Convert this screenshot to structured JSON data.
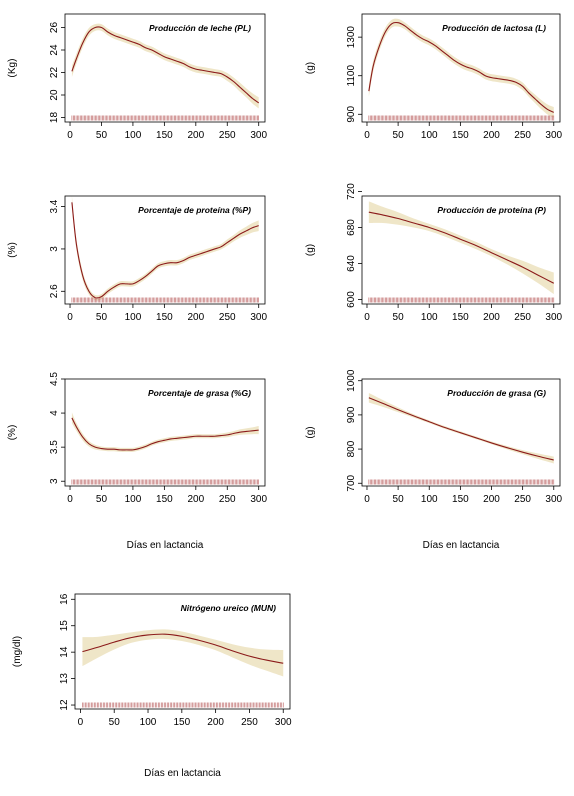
{
  "chart_data": [
    {
      "id": "pl",
      "type": "line",
      "title": "Producción de leche (PL)",
      "ylabel": "(Kg)",
      "xlabel": "",
      "xlim": [
        -8,
        310
      ],
      "ylim": [
        17.6,
        27.2
      ],
      "xticks": [
        0,
        50,
        100,
        150,
        200,
        250,
        300
      ],
      "yticks": [
        18,
        20,
        22,
        24,
        26
      ],
      "series": [
        {
          "x": [
            3,
            10,
            20,
            30,
            40,
            50,
            60,
            70,
            80,
            90,
            100,
            110,
            120,
            130,
            140,
            150,
            160,
            170,
            180,
            190,
            200,
            210,
            220,
            230,
            240,
            250,
            260,
            270,
            280,
            290,
            300
          ],
          "y": [
            22.1,
            23.2,
            24.6,
            25.6,
            26.0,
            26.0,
            25.6,
            25.3,
            25.1,
            24.9,
            24.7,
            24.5,
            24.2,
            24.0,
            23.7,
            23.4,
            23.2,
            23.0,
            22.8,
            22.5,
            22.3,
            22.2,
            22.1,
            22.0,
            21.9,
            21.6,
            21.2,
            20.7,
            20.2,
            19.7,
            19.3
          ],
          "band": [
            0.5,
            0.45,
            0.4,
            0.35,
            0.3,
            0.3,
            0.3,
            0.3,
            0.3,
            0.3,
            0.3,
            0.3,
            0.3,
            0.3,
            0.3,
            0.3,
            0.3,
            0.3,
            0.3,
            0.3,
            0.3,
            0.3,
            0.3,
            0.3,
            0.3,
            0.35,
            0.35,
            0.4,
            0.4,
            0.45,
            0.5
          ]
        }
      ]
    },
    {
      "id": "l",
      "type": "line",
      "title": "Producción de lactosa (L)",
      "ylabel": "(g)",
      "xlabel": "",
      "xlim": [
        -8,
        310
      ],
      "ylim": [
        860,
        1420
      ],
      "xticks": [
        0,
        50,
        100,
        150,
        200,
        250,
        300
      ],
      "yticks": [
        900,
        1100,
        1300
      ],
      "series": [
        {
          "x": [
            3,
            10,
            20,
            30,
            40,
            50,
            60,
            70,
            80,
            90,
            100,
            110,
            120,
            130,
            140,
            150,
            160,
            170,
            180,
            190,
            200,
            210,
            220,
            230,
            240,
            250,
            260,
            270,
            280,
            290,
            300
          ],
          "y": [
            1020,
            1150,
            1255,
            1330,
            1370,
            1375,
            1360,
            1335,
            1310,
            1290,
            1275,
            1255,
            1230,
            1205,
            1180,
            1160,
            1145,
            1135,
            1120,
            1100,
            1090,
            1085,
            1080,
            1075,
            1065,
            1045,
            1010,
            980,
            950,
            925,
            910
          ],
          "band": [
            30,
            28,
            25,
            22,
            20,
            20,
            18,
            18,
            18,
            18,
            18,
            18,
            18,
            18,
            18,
            18,
            18,
            18,
            18,
            18,
            18,
            18,
            18,
            18,
            18,
            20,
            20,
            22,
            24,
            26,
            28
          ]
        }
      ]
    },
    {
      "id": "pp",
      "type": "line",
      "title": "Porcentaje de proteína (%P)",
      "ylabel": "(%)",
      "xlabel": "",
      "xlim": [
        -8,
        310
      ],
      "ylim": [
        2.48,
        3.5
      ],
      "xticks": [
        0,
        50,
        100,
        150,
        200,
        250,
        300
      ],
      "yticks": [
        2.6,
        3.0,
        3.4
      ],
      "series": [
        {
          "x": [
            3,
            10,
            20,
            30,
            40,
            50,
            60,
            70,
            80,
            90,
            100,
            110,
            120,
            130,
            140,
            150,
            160,
            170,
            180,
            190,
            200,
            210,
            220,
            230,
            240,
            250,
            260,
            270,
            280,
            290,
            300
          ],
          "y": [
            3.44,
            3.05,
            2.75,
            2.6,
            2.54,
            2.55,
            2.6,
            2.64,
            2.67,
            2.67,
            2.67,
            2.7,
            2.74,
            2.79,
            2.84,
            2.86,
            2.87,
            2.87,
            2.89,
            2.92,
            2.94,
            2.96,
            2.98,
            3.0,
            3.02,
            3.06,
            3.1,
            3.14,
            3.17,
            3.2,
            3.22
          ],
          "band": [
            0.06,
            0.05,
            0.04,
            0.03,
            0.025,
            0.025,
            0.025,
            0.025,
            0.025,
            0.025,
            0.025,
            0.025,
            0.025,
            0.025,
            0.025,
            0.025,
            0.025,
            0.025,
            0.025,
            0.025,
            0.025,
            0.025,
            0.025,
            0.025,
            0.025,
            0.03,
            0.03,
            0.035,
            0.04,
            0.045,
            0.05
          ]
        }
      ]
    },
    {
      "id": "p",
      "type": "line",
      "title": "Producción de proteína (P)",
      "ylabel": "(g)",
      "xlabel": "",
      "xlim": [
        -8,
        310
      ],
      "ylim": [
        595,
        715
      ],
      "xticks": [
        0,
        50,
        100,
        150,
        200,
        250,
        300
      ],
      "yticks": [
        600,
        640,
        680,
        720
      ],
      "series": [
        {
          "x": [
            3,
            25,
            50,
            75,
            100,
            125,
            150,
            175,
            200,
            225,
            250,
            275,
            300
          ],
          "y": [
            697,
            694,
            690,
            685,
            680,
            674,
            667,
            660,
            652,
            644,
            636,
            627,
            618
          ],
          "band": [
            12,
            9,
            7,
            5,
            4,
            4,
            4,
            4,
            4,
            5,
            7,
            9,
            12
          ]
        }
      ]
    },
    {
      "id": "pg",
      "type": "line",
      "title": "Porcentaje de grasa (%G)",
      "ylabel": "(%)",
      "xlabel": "Días en lactancia",
      "xlim": [
        -8,
        310
      ],
      "ylim": [
        2.93,
        4.5
      ],
      "xticks": [
        0,
        50,
        100,
        150,
        200,
        250,
        300
      ],
      "yticks": [
        3.0,
        3.5,
        4.0,
        4.5
      ],
      "series": [
        {
          "x": [
            3,
            10,
            20,
            30,
            40,
            50,
            60,
            70,
            80,
            90,
            100,
            110,
            120,
            130,
            140,
            150,
            160,
            170,
            180,
            190,
            200,
            210,
            220,
            230,
            240,
            250,
            260,
            270,
            280,
            290,
            300
          ],
          "y": [
            3.93,
            3.8,
            3.65,
            3.55,
            3.5,
            3.48,
            3.47,
            3.47,
            3.46,
            3.46,
            3.46,
            3.48,
            3.51,
            3.55,
            3.58,
            3.6,
            3.62,
            3.63,
            3.64,
            3.65,
            3.66,
            3.66,
            3.66,
            3.66,
            3.67,
            3.68,
            3.7,
            3.72,
            3.73,
            3.74,
            3.75
          ],
          "band": [
            0.08,
            0.06,
            0.05,
            0.04,
            0.035,
            0.03,
            0.03,
            0.03,
            0.03,
            0.03,
            0.03,
            0.03,
            0.03,
            0.03,
            0.03,
            0.03,
            0.03,
            0.03,
            0.03,
            0.03,
            0.03,
            0.03,
            0.03,
            0.03,
            0.03,
            0.035,
            0.035,
            0.04,
            0.045,
            0.05,
            0.06
          ]
        }
      ]
    },
    {
      "id": "g",
      "type": "line",
      "title": "Producción de grasa (G)",
      "ylabel": "(g)",
      "xlabel": "Días en lactancia",
      "xlim": [
        -8,
        310
      ],
      "ylim": [
        692,
        1005
      ],
      "xticks": [
        0,
        50,
        100,
        150,
        200,
        250,
        300
      ],
      "yticks": [
        700,
        800,
        900,
        1000
      ],
      "series": [
        {
          "x": [
            3,
            25,
            50,
            75,
            100,
            125,
            150,
            175,
            200,
            225,
            250,
            275,
            300
          ],
          "y": [
            950,
            934,
            915,
            897,
            880,
            863,
            848,
            833,
            818,
            804,
            791,
            779,
            768
          ],
          "band": [
            14,
            10,
            7,
            5,
            4,
            4,
            4,
            4,
            4,
            5,
            6,
            8,
            10
          ]
        }
      ]
    },
    {
      "id": "mun",
      "type": "line",
      "title": "Nitrógeno ureico (MUN)",
      "ylabel": "(mg/dl)",
      "xlabel": "Días en lactancia",
      "xlim": [
        -8,
        310
      ],
      "ylim": [
        11.85,
        16.2
      ],
      "xticks": [
        0,
        50,
        100,
        150,
        200,
        250,
        300
      ],
      "yticks": [
        12,
        13,
        14,
        15,
        16
      ],
      "series": [
        {
          "x": [
            3,
            25,
            50,
            75,
            100,
            125,
            150,
            175,
            200,
            225,
            250,
            275,
            300
          ],
          "y": [
            14.02,
            14.18,
            14.38,
            14.55,
            14.65,
            14.68,
            14.6,
            14.45,
            14.27,
            14.05,
            13.85,
            13.7,
            13.58
          ],
          "band": [
            0.55,
            0.4,
            0.28,
            0.2,
            0.18,
            0.18,
            0.18,
            0.18,
            0.2,
            0.25,
            0.32,
            0.4,
            0.5
          ]
        }
      ]
    }
  ],
  "colors": {
    "line": "#8b1a1a",
    "band": "#efe6c8",
    "rug": "#b85c5c"
  }
}
